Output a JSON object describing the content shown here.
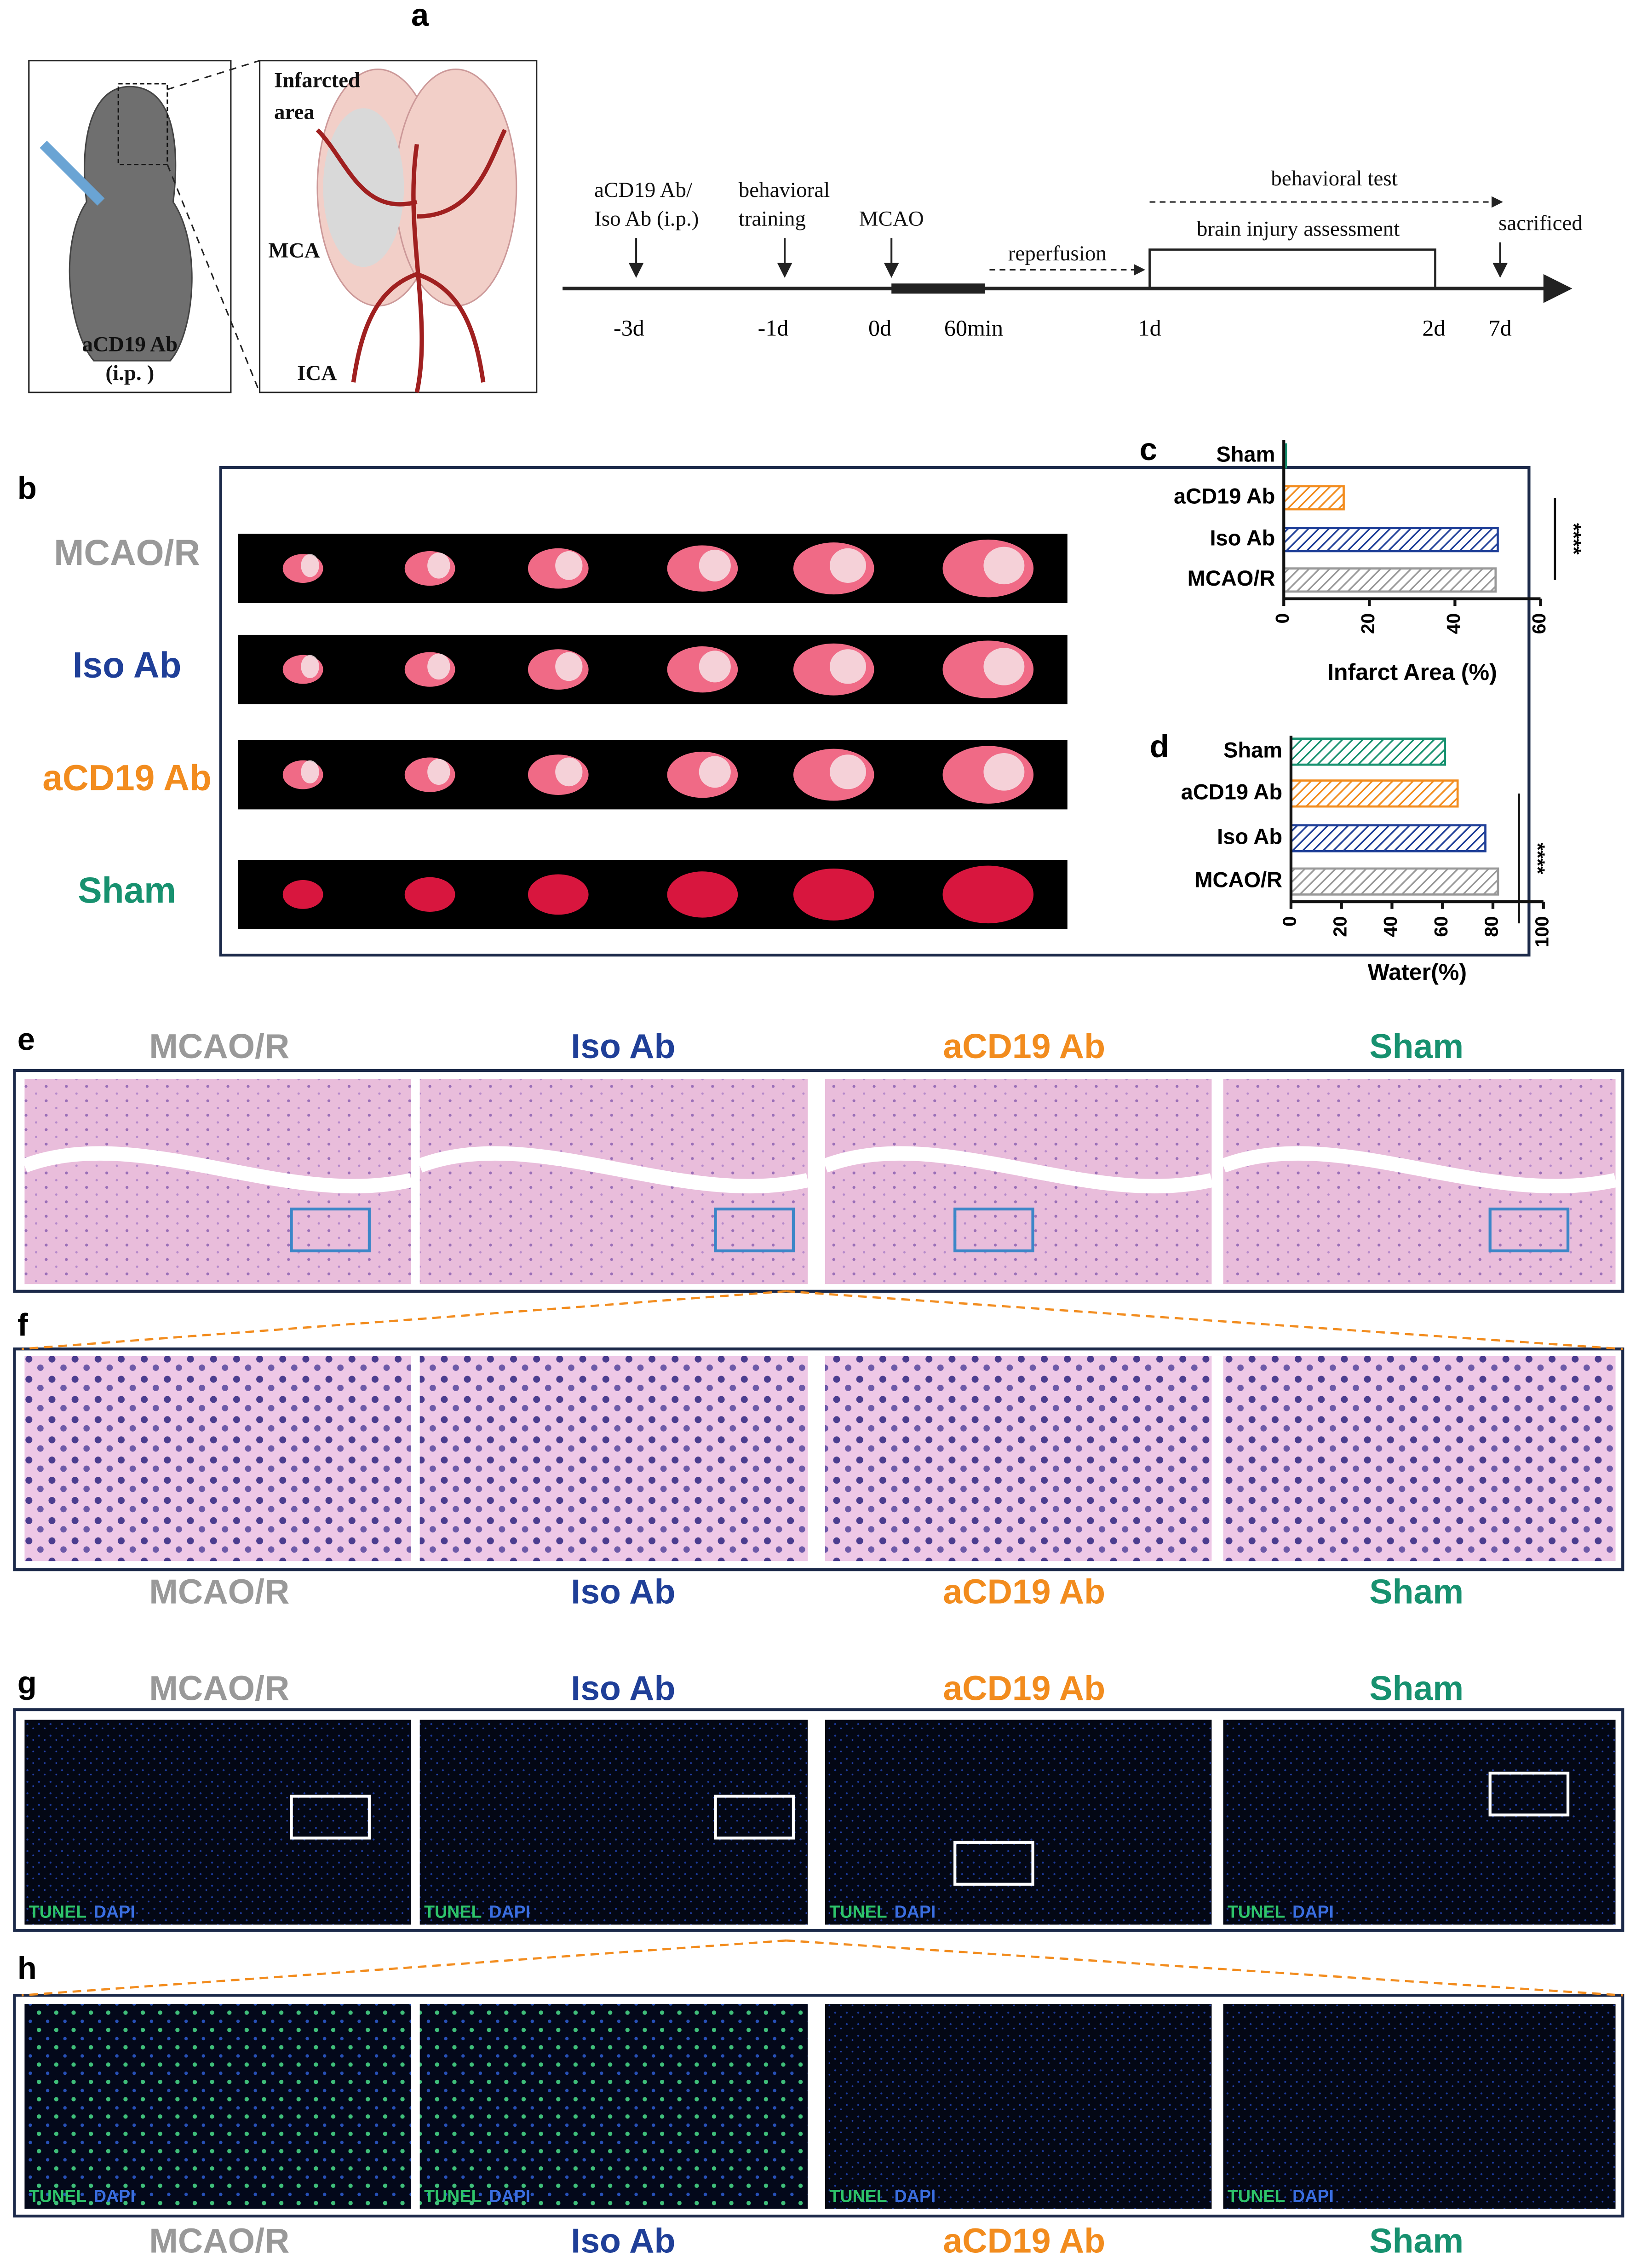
{
  "panel_letters": [
    "a",
    "b",
    "c",
    "d",
    "e",
    "f",
    "g",
    "h"
  ],
  "groups": [
    {
      "name": "MCAO/R",
      "color": "#999999"
    },
    {
      "name": "Iso Ab",
      "color": "#1f3f98"
    },
    {
      "name": "aCD19 Ab",
      "color": "#f28c1e"
    },
    {
      "name": "Sham",
      "color": "#17916f"
    }
  ],
  "schematic": {
    "infarcted": "Infarcted",
    "area": "area",
    "mca": "MCA",
    "ica": "ICA",
    "mouse_label": "aCD19 Ab",
    "mouse_route": "(i.p. )"
  },
  "timeline": {
    "treatment_1": "aCD19 Ab/",
    "treatment_2": "Iso Ab  (i.p.)",
    "training_1": "behavioral",
    "training_2": "training",
    "mcao": "MCAO",
    "reperfusion": "reperfusion",
    "behavioral_test": "behavioral test",
    "assessment": "brain injury assessment",
    "sacrificed": "sacrificed",
    "days": [
      "-3d",
      "-1d",
      "0d",
      "60min",
      "1d",
      "2d",
      "7d"
    ]
  },
  "stain_labels": {
    "tunel": "TUNEL",
    "dapi": "DAPI"
  },
  "chart_data": [
    {
      "type": "bar",
      "orientation": "horizontal",
      "xlabel": "Infarct Area (%)",
      "categories": [
        "Sham",
        "aCD19 Ab",
        "Iso Ab",
        "MCAO/R"
      ],
      "values": [
        0.5,
        14,
        50,
        49.5
      ],
      "colors": [
        "#17916f",
        "#f28c1e",
        "#1f3f98",
        "#999999"
      ],
      "xlim": [
        0,
        60
      ],
      "xticks": [
        0,
        20,
        40,
        60
      ],
      "annotation": "****"
    },
    {
      "type": "bar",
      "orientation": "horizontal",
      "xlabel": "Water(%)",
      "categories": [
        "Sham",
        "aCD19 Ab",
        "Iso Ab",
        "MCAO/R"
      ],
      "values": [
        61,
        66,
        77,
        82
      ],
      "colors": [
        "#17916f",
        "#f28c1e",
        "#1f3f98",
        "#999999"
      ],
      "xlim": [
        0,
        100
      ],
      "xticks": [
        0,
        20,
        40,
        60,
        80,
        100
      ],
      "annotation": "****"
    }
  ]
}
